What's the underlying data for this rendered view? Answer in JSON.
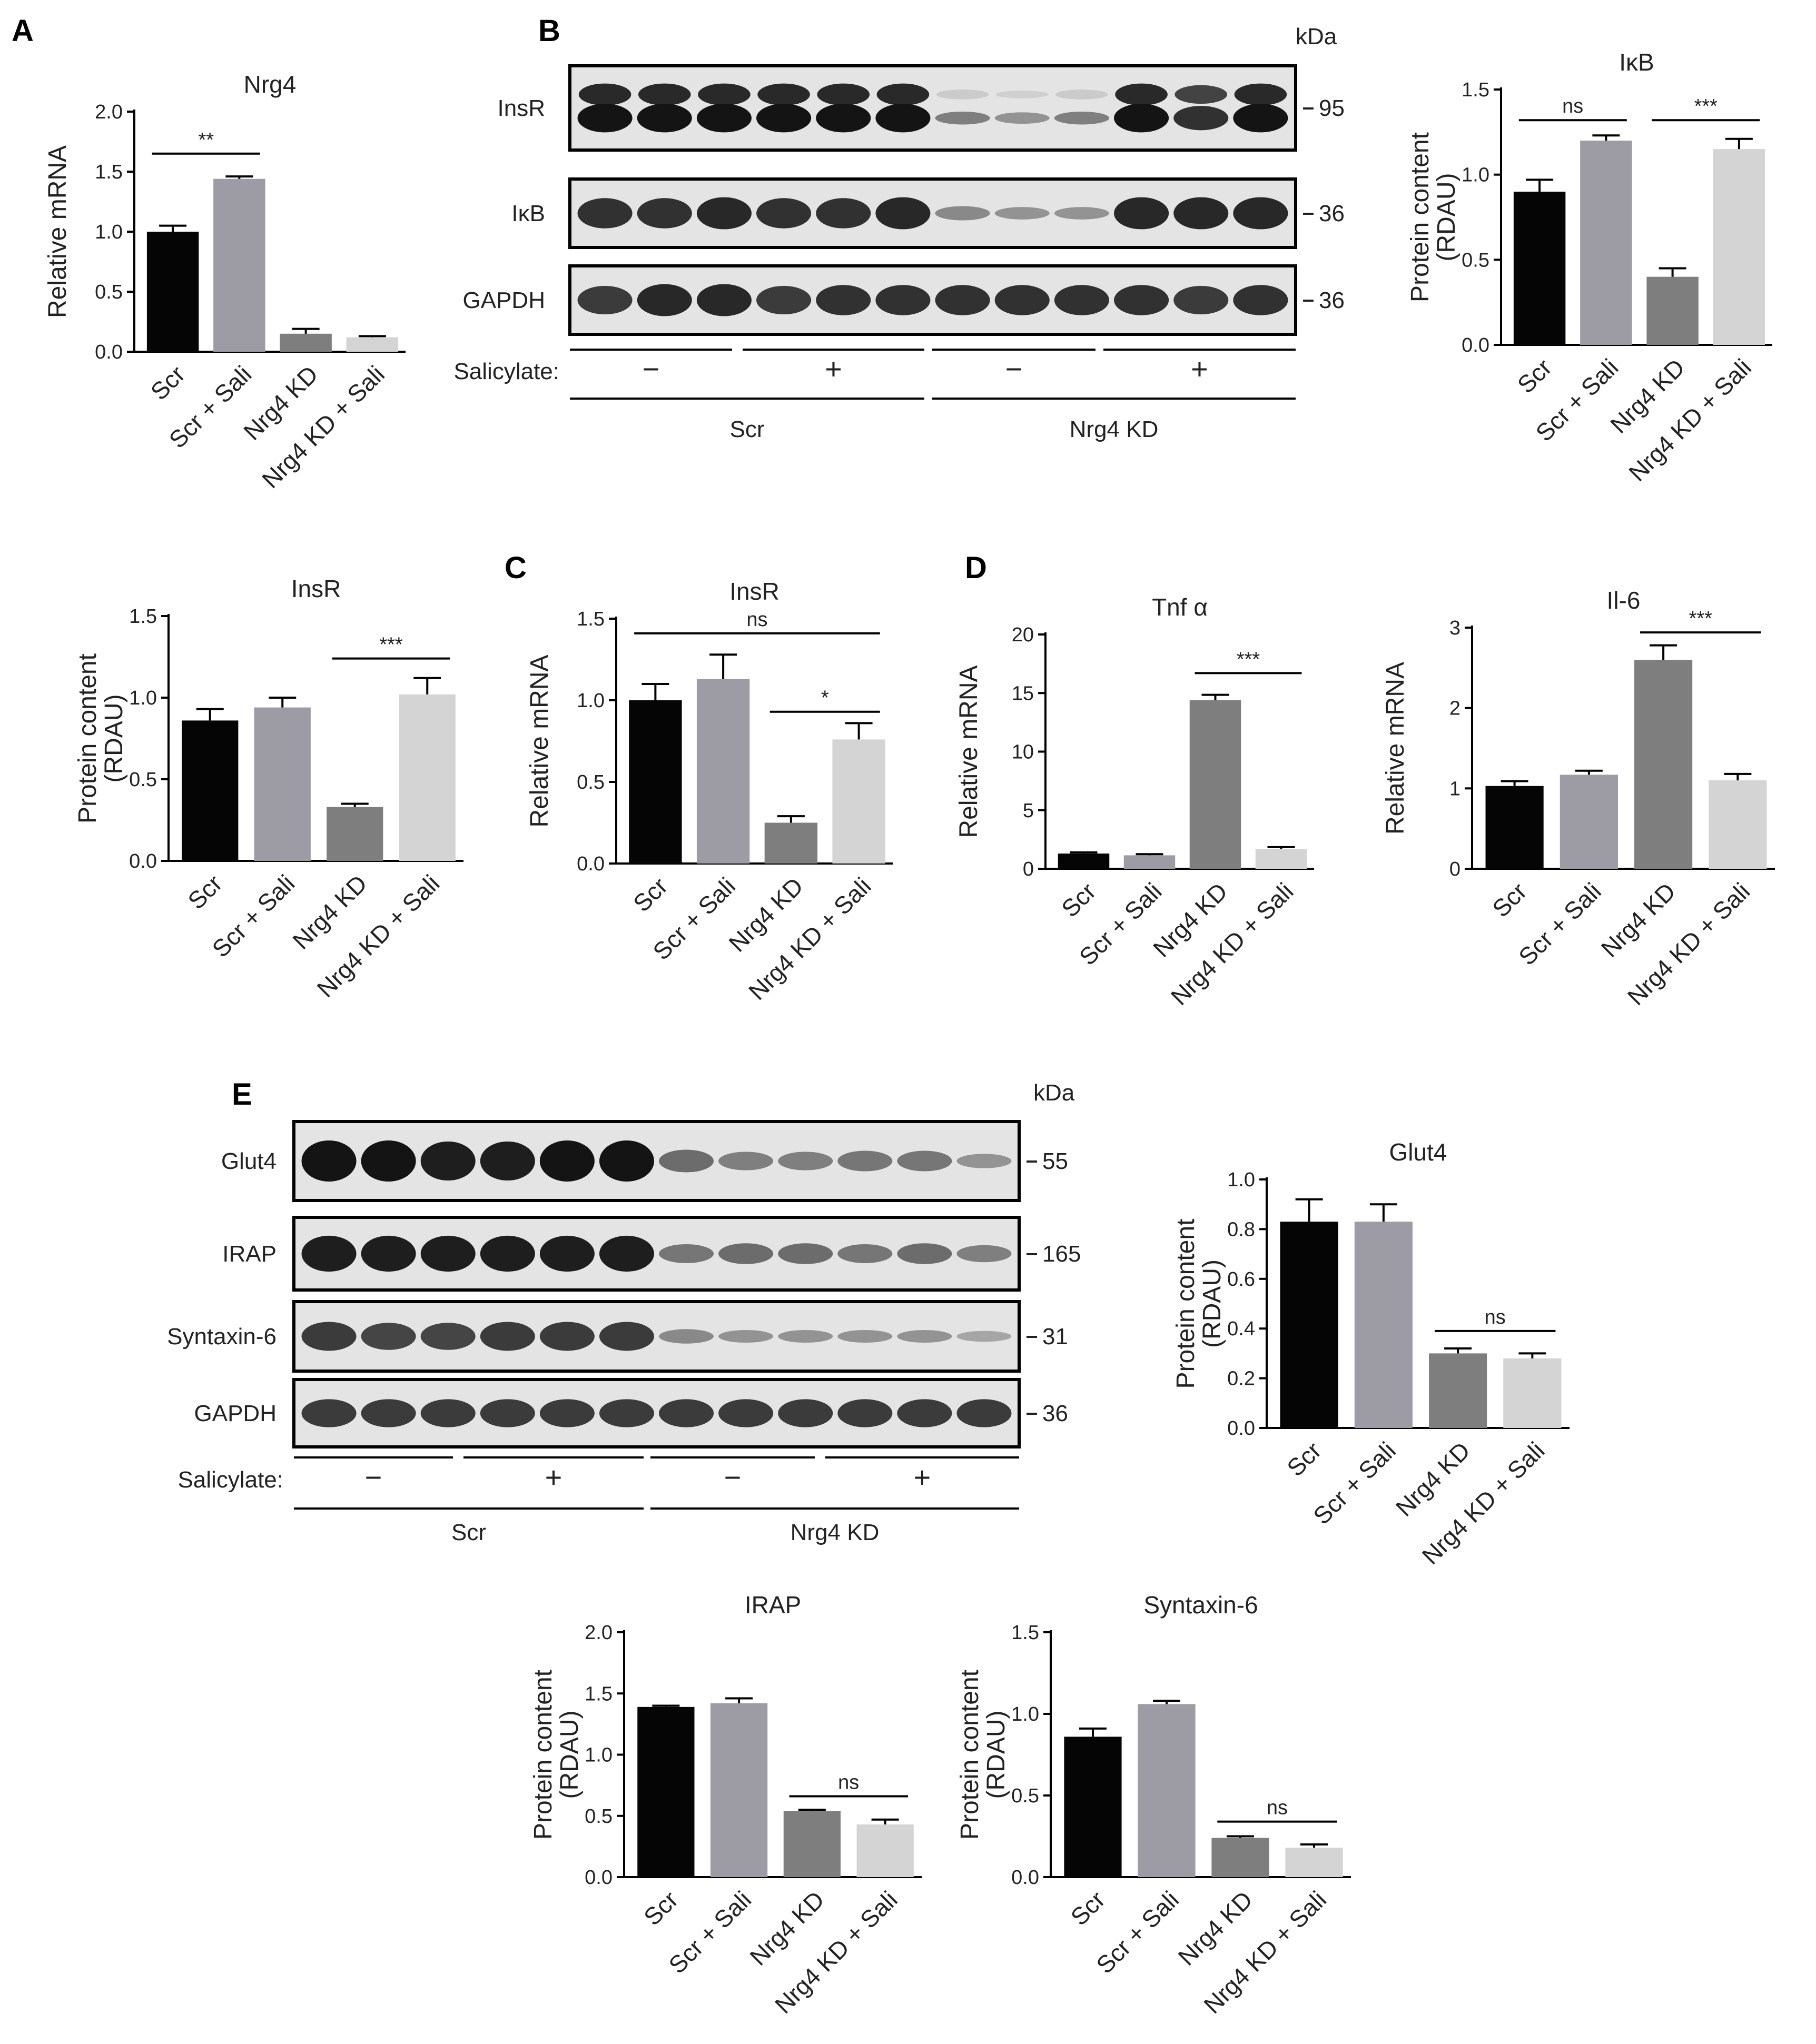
{
  "figure": {
    "panel_letters": [
      "A",
      "B",
      "C",
      "D",
      "E"
    ]
  },
  "blots": {
    "B": {
      "kda_header": "kDa",
      "rows": [
        {
          "label": "InsR",
          "kda": "95",
          "intensity": [
            1,
            1,
            1,
            1,
            1,
            1,
            0.45,
            0.35,
            0.45,
            1,
            0.85,
            1
          ],
          "double": true
        },
        {
          "label": "IκB",
          "kda": "36",
          "intensity": [
            0.85,
            0.85,
            0.9,
            0.85,
            0.85,
            0.9,
            0.4,
            0.35,
            0.35,
            0.9,
            0.9,
            0.9
          ],
          "double": false
        },
        {
          "label": "GAPDH",
          "kda": "36",
          "intensity": [
            0.8,
            0.9,
            0.9,
            0.8,
            0.85,
            0.85,
            0.85,
            0.85,
            0.85,
            0.85,
            0.8,
            0.85
          ],
          "double": false
        }
      ],
      "salicylate_label": "Salicylate:",
      "salicylate_signs": [
        "−",
        "+",
        "−",
        "+"
      ],
      "groups": [
        "Scr",
        "Nrg4 KD"
      ]
    },
    "E": {
      "kda_header": "kDa",
      "rows": [
        {
          "label": "Glut4",
          "kda": "55",
          "intensity": [
            1,
            1,
            0.95,
            0.95,
            1,
            1,
            0.55,
            0.45,
            0.45,
            0.5,
            0.5,
            0.35
          ],
          "double": false
        },
        {
          "label": "IRAP",
          "kda": "165",
          "intensity": [
            0.95,
            0.95,
            0.95,
            0.95,
            0.95,
            0.95,
            0.5,
            0.55,
            0.55,
            0.5,
            0.55,
            0.45
          ],
          "double": false
        },
        {
          "label": "Syntaxin-6",
          "kda": "31",
          "intensity": [
            0.8,
            0.75,
            0.75,
            0.8,
            0.8,
            0.8,
            0.4,
            0.35,
            0.35,
            0.35,
            0.35,
            0.25
          ],
          "double": false
        },
        {
          "label": "GAPDH",
          "kda": "36",
          "intensity": [
            0.8,
            0.8,
            0.8,
            0.8,
            0.8,
            0.8,
            0.8,
            0.8,
            0.8,
            0.8,
            0.8,
            0.8
          ],
          "double": false
        }
      ],
      "salicylate_label": "Salicylate:",
      "salicylate_signs": [
        "−",
        "+",
        "−",
        "+"
      ],
      "groups": [
        "Scr",
        "Nrg4 KD"
      ]
    }
  },
  "chart_data": [
    {
      "id": "A-Nrg4",
      "type": "bar",
      "title": "Nrg4",
      "ylabel": "Relative mRNA",
      "ylim": [
        0,
        2.0
      ],
      "yticks": [
        "0.0",
        "0.5",
        "1.0",
        "1.5",
        "2.0"
      ],
      "categories": [
        "Scr",
        "Scr + Sali",
        "Nrg4 KD",
        "Nrg4 KD + Sali"
      ],
      "values": [
        1.0,
        1.44,
        0.15,
        0.12
      ],
      "errors": [
        0.05,
        0.02,
        0.04,
        0.01
      ],
      "colors": [
        "#050505",
        "#9d9ca4",
        "#7d7e7d",
        "#d4d4d4"
      ],
      "significance": [
        {
          "from": 0,
          "to": 1,
          "label": "**",
          "y": 1.65
        }
      ]
    },
    {
      "id": "B-IkB",
      "type": "bar",
      "title": "IκB",
      "ylabel": "Protein content\n(RDAU)",
      "ylim": [
        0,
        1.5
      ],
      "yticks": [
        "0.0",
        "0.5",
        "1.0",
        "1.5"
      ],
      "categories": [
        "Scr",
        "Scr + Sali",
        "Nrg4 KD",
        "Nrg4 KD + Sali"
      ],
      "values": [
        0.9,
        1.2,
        0.4,
        1.15
      ],
      "errors": [
        0.07,
        0.03,
        0.05,
        0.06
      ],
      "colors": [
        "#050505",
        "#9d9ca4",
        "#7d7e7d",
        "#d4d4d4"
      ],
      "significance": [
        {
          "from": 0,
          "to": 1,
          "label": "ns",
          "y": 1.32
        },
        {
          "from": 2,
          "to": 3,
          "label": "***",
          "y": 1.32
        }
      ]
    },
    {
      "id": "B-InsR",
      "type": "bar",
      "title": "InsR",
      "ylabel": "Protein content\n(RDAU)",
      "ylim": [
        0,
        1.5
      ],
      "yticks": [
        "0.0",
        "0.5",
        "1.0",
        "1.5"
      ],
      "categories": [
        "Scr",
        "Scr + Sali",
        "Nrg4 KD",
        "Nrg4 KD + Sali"
      ],
      "values": [
        0.86,
        0.94,
        0.33,
        1.02
      ],
      "errors": [
        0.07,
        0.06,
        0.02,
        0.1
      ],
      "colors": [
        "#050505",
        "#9d9ca4",
        "#7d7e7d",
        "#d4d4d4"
      ],
      "significance": [
        {
          "from": 2,
          "to": 3,
          "label": "***",
          "y": 1.24
        }
      ]
    },
    {
      "id": "C-InsR",
      "type": "bar",
      "title": "InsR",
      "ylabel": "Relative mRNA",
      "ylim": [
        0,
        1.5
      ],
      "yticks": [
        "0.0",
        "0.5",
        "1.0",
        "1.5"
      ],
      "categories": [
        "Scr",
        "Scr + Sali",
        "Nrg4 KD",
        "Nrg4 KD + Sali"
      ],
      "values": [
        1.0,
        1.13,
        0.25,
        0.76
      ],
      "errors": [
        0.1,
        0.15,
        0.04,
        0.1
      ],
      "colors": [
        "#050505",
        "#9d9ca4",
        "#7d7e7d",
        "#d4d4d4"
      ],
      "significance": [
        {
          "from": 0,
          "to": 3,
          "label": "ns",
          "y": 1.41
        },
        {
          "from": 2,
          "to": 3,
          "label": "*",
          "y": 0.93
        }
      ]
    },
    {
      "id": "D-Tnfa",
      "type": "bar",
      "title": "Tnf α",
      "ylabel": "Relative mRNA",
      "ylim": [
        0,
        20
      ],
      "yticks": [
        "0",
        "5",
        "10",
        "15",
        "20"
      ],
      "categories": [
        "Scr",
        "Scr + Sali",
        "Nrg4 KD",
        "Nrg4 KD + Sali"
      ],
      "values": [
        1.3,
        1.15,
        14.4,
        1.7
      ],
      "errors": [
        0.1,
        0.1,
        0.45,
        0.15
      ],
      "colors": [
        "#050505",
        "#9d9ca4",
        "#7d7e7d",
        "#d4d4d4"
      ],
      "significance": [
        {
          "from": 2,
          "to": 3,
          "label": "***",
          "y": 16.7
        }
      ]
    },
    {
      "id": "D-Il6",
      "type": "bar",
      "title": "Il-6",
      "ylabel": "Relative mRNA",
      "ylim": [
        0,
        3
      ],
      "yticks": [
        "0",
        "1",
        "2",
        "3"
      ],
      "categories": [
        "Scr",
        "Scr + Sali",
        "Nrg4 KD",
        "Nrg4 KD + Sali"
      ],
      "values": [
        1.03,
        1.17,
        2.6,
        1.1
      ],
      "errors": [
        0.06,
        0.05,
        0.18,
        0.08
      ],
      "colors": [
        "#050505",
        "#9d9ca4",
        "#7d7e7d",
        "#d4d4d4"
      ],
      "significance": [
        {
          "from": 2,
          "to": 3,
          "label": "***",
          "y": 2.94
        }
      ]
    },
    {
      "id": "E-Glut4",
      "type": "bar",
      "title": "Glut4",
      "ylabel": "Protein content\n(RDAU)",
      "ylim": [
        0,
        1.0
      ],
      "yticks": [
        "0.0",
        "0.2",
        "0.4",
        "0.6",
        "0.8",
        "1.0"
      ],
      "categories": [
        "Scr",
        "Scr + Sali",
        "Nrg4 KD",
        "Nrg4 KD + Sali"
      ],
      "values": [
        0.83,
        0.83,
        0.3,
        0.28
      ],
      "errors": [
        0.09,
        0.07,
        0.02,
        0.02
      ],
      "colors": [
        "#050505",
        "#9d9ca4",
        "#7d7e7d",
        "#d4d4d4"
      ],
      "significance": [
        {
          "from": 2,
          "to": 3,
          "label": "ns",
          "y": 0.39
        }
      ]
    },
    {
      "id": "E-IRAP",
      "type": "bar",
      "title": "IRAP",
      "ylabel": "Protein content\n(RDAU)",
      "ylim": [
        0,
        2.0
      ],
      "yticks": [
        "0.0",
        "0.5",
        "1.0",
        "1.5",
        "2.0"
      ],
      "categories": [
        "Scr",
        "Scr + Sali",
        "Nrg4 KD",
        "Nrg4 KD + Sali"
      ],
      "values": [
        1.39,
        1.42,
        0.54,
        0.43
      ],
      "errors": [
        0.01,
        0.04,
        0.01,
        0.04
      ],
      "colors": [
        "#050505",
        "#9d9ca4",
        "#7d7e7d",
        "#d4d4d4"
      ],
      "significance": [
        {
          "from": 2,
          "to": 3,
          "label": "ns",
          "y": 0.66
        }
      ]
    },
    {
      "id": "E-Syntaxin6",
      "type": "bar",
      "title": "Syntaxin-6",
      "ylabel": "Protein content\n(RDAU)",
      "ylim": [
        0,
        1.5
      ],
      "yticks": [
        "0.0",
        "0.5",
        "1.0",
        "1.5"
      ],
      "categories": [
        "Scr",
        "Scr + Sali",
        "Nrg4 KD",
        "Nrg4 KD + Sali"
      ],
      "values": [
        0.86,
        1.06,
        0.24,
        0.18
      ],
      "errors": [
        0.05,
        0.02,
        0.01,
        0.02
      ],
      "colors": [
        "#050505",
        "#9d9ca4",
        "#7d7e7d",
        "#d4d4d4"
      ],
      "significance": [
        {
          "from": 2,
          "to": 3,
          "label": "ns",
          "y": 0.34
        }
      ]
    }
  ]
}
